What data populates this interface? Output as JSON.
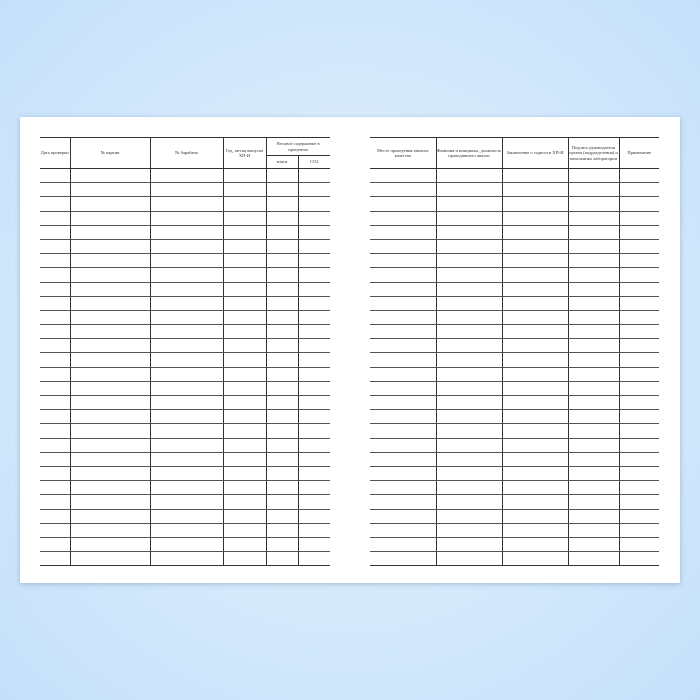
{
  "left_table": {
    "headers": {
      "date": "Дата проверки",
      "batch": "№ партии",
      "drum": "№ барабана",
      "release": "Год, месяц выпуска ХП-И",
      "weight_group": "Весовое содержание в процентах",
      "moisture": "влаги",
      "co2": "CO2"
    },
    "rows": 28
  },
  "right_table": {
    "headers": {
      "place": "Место проведения анализа качества",
      "analyst": "Фамилия и инициалы, должность проводившего анализ",
      "conclusion": "Заключение о годности ХП-И",
      "signature": "Подпись руководителя органа (подразделения) и начальника лаборатории",
      "note": "Примечание"
    },
    "rows": 28
  }
}
